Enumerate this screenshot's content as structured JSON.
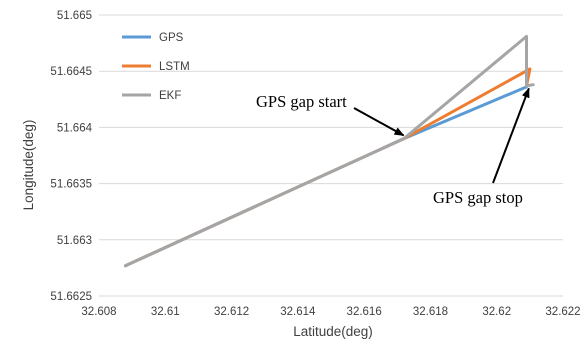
{
  "chart_data": {
    "type": "line",
    "xlabel": "Latitude(deg)",
    "ylabel": "Longitude(deg)",
    "xlim": [
      32.608,
      32.622
    ],
    "ylim": [
      51.6625,
      51.665
    ],
    "x_ticks": [
      32.608,
      32.61,
      32.612,
      32.614,
      32.616,
      32.618,
      32.62,
      32.622
    ],
    "x_tick_labels": [
      "32.608",
      "32.61",
      "32.612",
      "32.614",
      "32.616",
      "32.618",
      "32.62",
      "32.622"
    ],
    "y_ticks": [
      51.6625,
      51.663,
      51.6635,
      51.664,
      51.6645,
      51.665
    ],
    "y_tick_labels": [
      "51.6625",
      "51.663",
      "51.6635",
      "51.664",
      "51.6645",
      "51.665"
    ],
    "grid": "horizontal",
    "legend_position": "top-left",
    "series": [
      {
        "name": "GPS",
        "color": "#5b9bd5",
        "points": [
          [
            32.6088,
            51.66277
          ],
          [
            32.6172,
            51.6639
          ],
          [
            32.6209,
            51.66436
          ],
          [
            32.6209,
            51.66437
          ]
        ]
      },
      {
        "name": "LSTM",
        "color": "#ed7d31",
        "points": [
          [
            32.6088,
            51.66277
          ],
          [
            32.6172,
            51.6639
          ],
          [
            32.621,
            51.66452
          ],
          [
            32.6209,
            51.66437
          ]
        ]
      },
      {
        "name": "EKF",
        "color": "#a5a5a5",
        "points": [
          [
            32.6088,
            51.66277
          ],
          [
            32.6172,
            51.6639
          ],
          [
            32.6209,
            51.66481
          ],
          [
            32.6209,
            51.66437
          ],
          [
            32.6211,
            51.66438
          ]
        ]
      }
    ],
    "annotations": [
      {
        "id": "gap-start",
        "text": "GPS gap start",
        "target": [
          32.61725,
          51.66392
        ]
      },
      {
        "id": "gap-stop",
        "text": "GPS gap stop",
        "target": [
          32.621,
          51.6644
        ]
      }
    ]
  }
}
